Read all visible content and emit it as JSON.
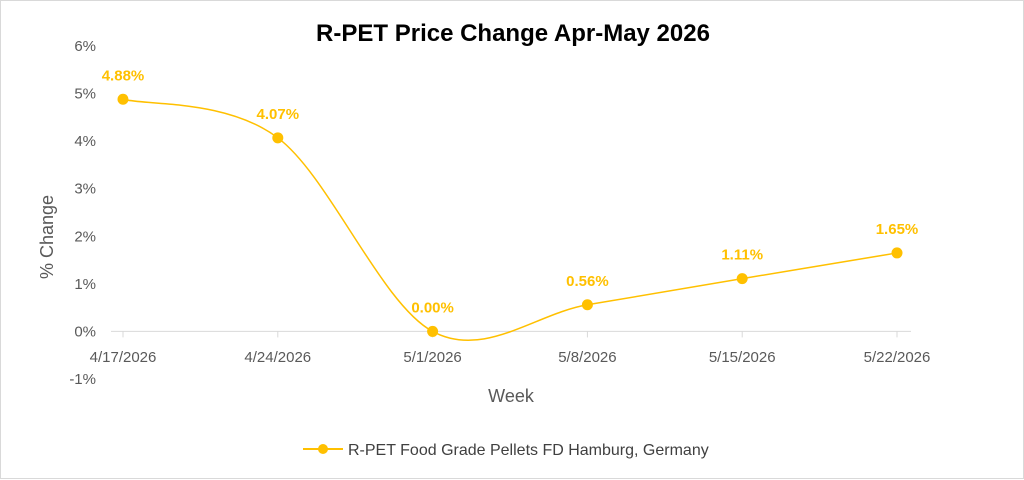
{
  "chart_data": {
    "type": "line",
    "title": "R-PET  Price Change Apr-May 2026",
    "xlabel": "Week",
    "ylabel": "% Change",
    "categories": [
      "4/17/2026",
      "4/24/2026",
      "5/1/2026",
      "5/8/2026",
      "5/15/2026",
      "5/22/2026"
    ],
    "series": [
      {
        "name": "R-PET Food Grade Pellets FD Hamburg, Germany",
        "values": [
          4.88,
          4.07,
          0.0,
          0.56,
          1.11,
          1.65
        ],
        "labels": [
          "4.88%",
          "4.07%",
          "0.00%",
          "0.56%",
          "1.11%",
          "1.65%"
        ],
        "color": "#FFC000",
        "smoothed": true
      }
    ],
    "ylim": [
      -1,
      6
    ],
    "yticks": [
      -1,
      0,
      1,
      2,
      3,
      4,
      5,
      6
    ],
    "ytick_labels": [
      "-1%",
      "0%",
      "1%",
      "2%",
      "3%",
      "4%",
      "5%",
      "6%"
    ],
    "grid": false,
    "legend_position": "bottom"
  }
}
